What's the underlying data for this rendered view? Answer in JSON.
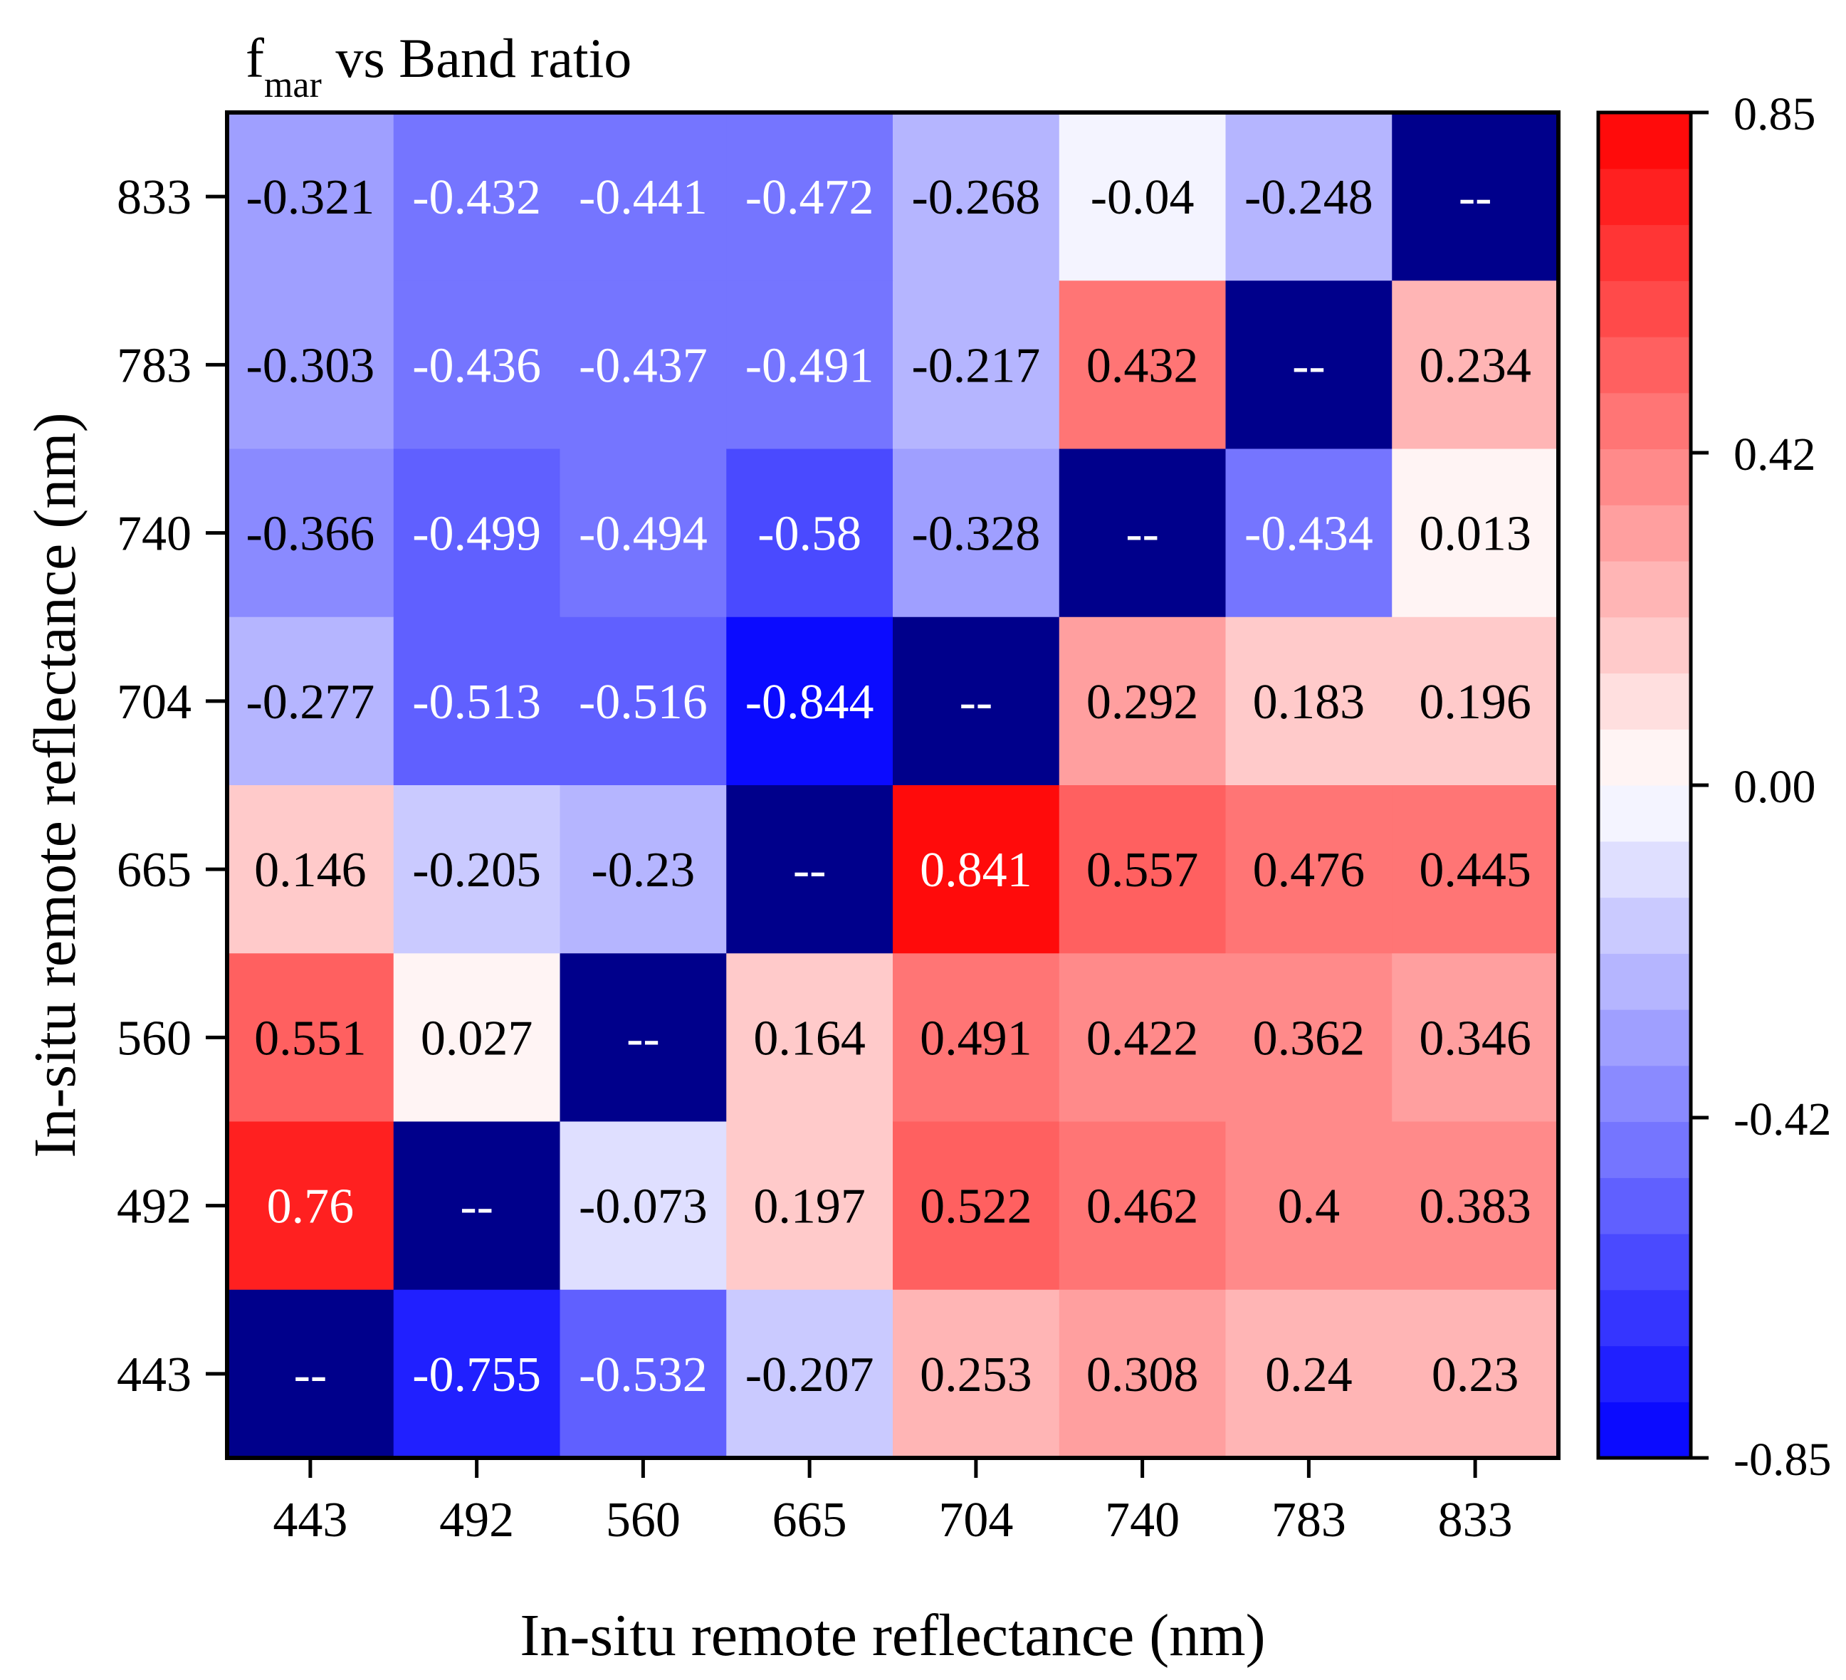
{
  "chart_data": {
    "type": "heatmap",
    "title": {
      "main": "f",
      "sub": "mar",
      "rest": " vs Band ratio"
    },
    "xlabel": "In-situ remote reflectance (nm)",
    "ylabel": "In-situ remote reflectance (nm)",
    "x_categories": [
      "443",
      "492",
      "560",
      "665",
      "704",
      "740",
      "783",
      "833"
    ],
    "y_categories": [
      "833",
      "783",
      "740",
      "704",
      "665",
      "560",
      "492",
      "443"
    ],
    "matrix_labels": [
      [
        "-0.321",
        "-0.432",
        "-0.441",
        "-0.472",
        "-0.268",
        "-0.04",
        "-0.248",
        "--"
      ],
      [
        "-0.303",
        "-0.436",
        "-0.437",
        "-0.491",
        "-0.217",
        "0.432",
        "--",
        "0.234"
      ],
      [
        "-0.366",
        "-0.499",
        "-0.494",
        "-0.58",
        "-0.328",
        "--",
        "-0.434",
        "0.013"
      ],
      [
        "-0.277",
        "-0.513",
        "-0.516",
        "-0.844",
        "--",
        "0.292",
        "0.183",
        "0.196"
      ],
      [
        "0.146",
        "-0.205",
        "-0.23",
        "--",
        "0.841",
        "0.557",
        "0.476",
        "0.445"
      ],
      [
        "0.551",
        "0.027",
        "--",
        "0.164",
        "0.491",
        "0.422",
        "0.362",
        "0.346"
      ],
      [
        "0.76",
        "--",
        "-0.073",
        "0.197",
        "0.522",
        "0.462",
        "0.4",
        "0.383"
      ],
      [
        "--",
        "-0.755",
        "-0.532",
        "-0.207",
        "0.253",
        "0.308",
        "0.24",
        "0.23"
      ]
    ],
    "missing_marker": "--",
    "missing_color": "#00008b",
    "colorbar": {
      "min": -0.85,
      "max": 0.85,
      "levels": 24,
      "ticks": [
        {
          "value": 0.85,
          "label": "0.85"
        },
        {
          "value": 0.42,
          "label": "0.42"
        },
        {
          "value": 0.0,
          "label": "0.00"
        },
        {
          "value": -0.42,
          "label": "-0.42"
        },
        {
          "value": -0.85,
          "label": "-0.85"
        }
      ],
      "low_color": "#0000ff",
      "mid_color": "#ffffff",
      "high_color": "#ff0000"
    }
  }
}
